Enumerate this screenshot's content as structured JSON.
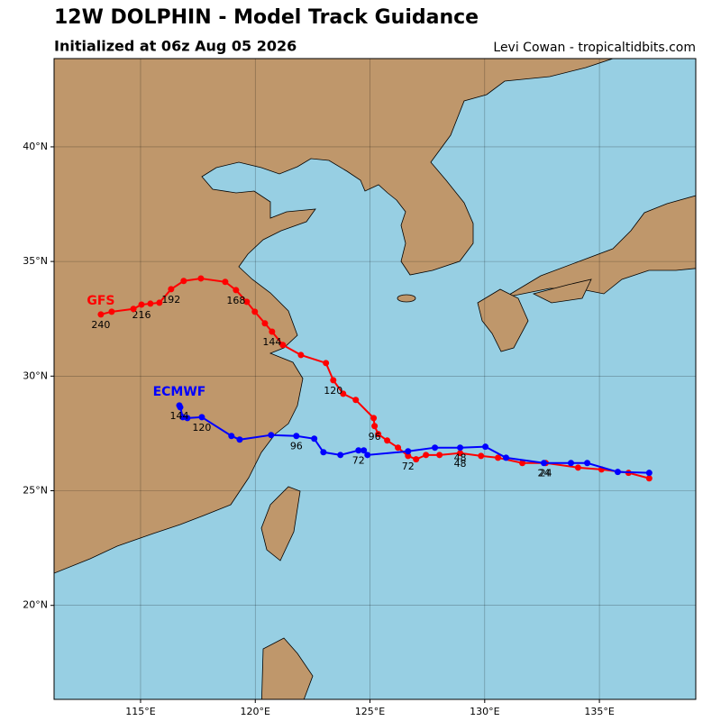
{
  "header": {
    "title": "12W DOLPHIN - Model Track Guidance",
    "subtitle": "Initialized at 06z Aug 05 2026",
    "credit": "Levi Cowan - tropicaltidbits.com"
  },
  "chart_data": {
    "type": "track",
    "xlim": [
      111.23,
      139.2
    ],
    "ylim": [
      15.9,
      43.85
    ],
    "xticks": [
      {
        "value": 115,
        "label": "115°E"
      },
      {
        "value": 120,
        "label": "120°E"
      },
      {
        "value": 125,
        "label": "125°E"
      },
      {
        "value": 130,
        "label": "130°E"
      },
      {
        "value": 135,
        "label": "135°E"
      }
    ],
    "yticks": [
      {
        "value": 20,
        "label": "20°N"
      },
      {
        "value": 25,
        "label": "25°N"
      },
      {
        "value": 30,
        "label": "30°N"
      },
      {
        "value": 35,
        "label": "35°N"
      },
      {
        "value": 40,
        "label": "40°N"
      }
    ],
    "grid": true,
    "series": [
      {
        "name": "GFS",
        "color": "#ff0000",
        "x": [
          137.17,
          136.27,
          135.09,
          134.07,
          132.66,
          131.64,
          130.58,
          129.84,
          128.93,
          128.03,
          127.44,
          127.01,
          126.66,
          126.22,
          125.75,
          125.36,
          125.2,
          125.16,
          124.38,
          123.83,
          123.4,
          123.08,
          121.99,
          121.2,
          120.73,
          120.42,
          119.98,
          119.63,
          119.16,
          118.69,
          117.63,
          116.88,
          116.33,
          115.82,
          115.43,
          115.04,
          114.69,
          113.74,
          113.27
        ],
        "values": [
          25.54,
          25.78,
          25.93,
          26.01,
          26.21,
          26.21,
          26.44,
          26.52,
          26.64,
          26.56,
          26.56,
          26.37,
          26.52,
          26.88,
          27.19,
          27.47,
          27.82,
          28.17,
          28.96,
          29.23,
          29.82,
          30.57,
          30.92,
          31.36,
          31.94,
          32.3,
          32.81,
          33.24,
          33.75,
          34.11,
          34.26,
          34.15,
          33.79,
          33.2,
          33.16,
          33.12,
          32.93,
          32.81,
          32.69
        ],
        "point_labels": [
          null,
          null,
          null,
          null,
          "24",
          null,
          null,
          null,
          "48",
          null,
          null,
          null,
          "72",
          null,
          null,
          null,
          "96",
          null,
          null,
          null,
          "120",
          null,
          null,
          null,
          "144",
          null,
          null,
          null,
          "168",
          null,
          null,
          null,
          "192",
          null,
          null,
          "216",
          null,
          null,
          "240"
        ]
      },
      {
        "name": "ECMWF",
        "color": "#0000ff",
        "x": [
          137.17,
          135.8,
          134.47,
          133.76,
          132.58,
          130.93,
          130.03,
          128.93,
          127.83,
          126.66,
          124.89,
          124.73,
          124.5,
          123.71,
          122.97,
          122.57,
          121.79,
          120.69,
          119.32,
          118.96,
          117.67,
          117.04,
          116.84,
          116.73,
          116.69
        ],
        "values": [
          25.78,
          25.82,
          26.21,
          26.21,
          26.21,
          26.44,
          26.92,
          26.88,
          26.88,
          26.72,
          26.56,
          26.76,
          26.76,
          26.56,
          26.68,
          27.27,
          27.39,
          27.43,
          27.23,
          27.39,
          28.21,
          28.17,
          28.21,
          28.64,
          28.72
        ],
        "point_labels": [
          null,
          null,
          null,
          null,
          "24",
          null,
          null,
          "48",
          null,
          null,
          null,
          null,
          "72",
          null,
          null,
          null,
          "96",
          null,
          null,
          null,
          "120",
          null,
          null,
          null,
          "144"
        ]
      }
    ]
  }
}
